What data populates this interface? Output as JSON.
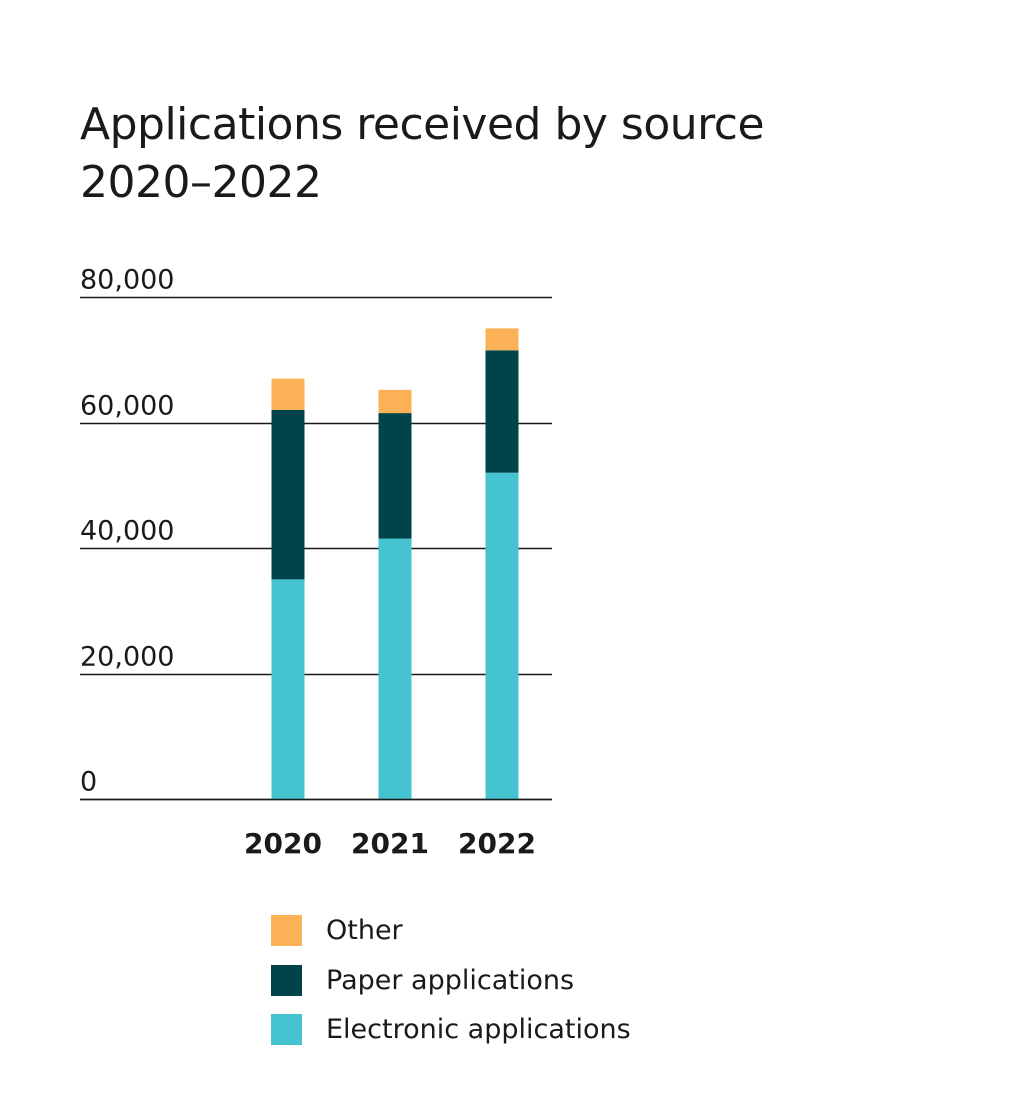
{
  "chart_data": {
    "type": "bar",
    "stacked": true,
    "title": [
      "Applications received by source",
      "2020–2022"
    ],
    "categories": [
      "2020",
      "2021",
      "2022"
    ],
    "series": [
      {
        "name": "Electronic applications",
        "color": "#45c3d0",
        "values": [
          35000,
          41500,
          52000
        ]
      },
      {
        "name": "Paper applications",
        "color": "#00434b",
        "values": [
          27000,
          20000,
          19500
        ]
      },
      {
        "name": "Other",
        "color": "#fbb257",
        "values": [
          5000,
          3700,
          3500
        ]
      }
    ],
    "ylim": [
      0,
      80000
    ],
    "yticks": [
      {
        "value": 0,
        "label": "0"
      },
      {
        "value": 20000,
        "label": "20,000"
      },
      {
        "value": 40000,
        "label": "40,000"
      },
      {
        "value": 60000,
        "label": "60,000"
      },
      {
        "value": 80000,
        "label": "80,000"
      }
    ],
    "grid": true,
    "legend_position": "bottom",
    "legend_order": [
      "Other",
      "Paper applications",
      "Electronic applications"
    ]
  }
}
